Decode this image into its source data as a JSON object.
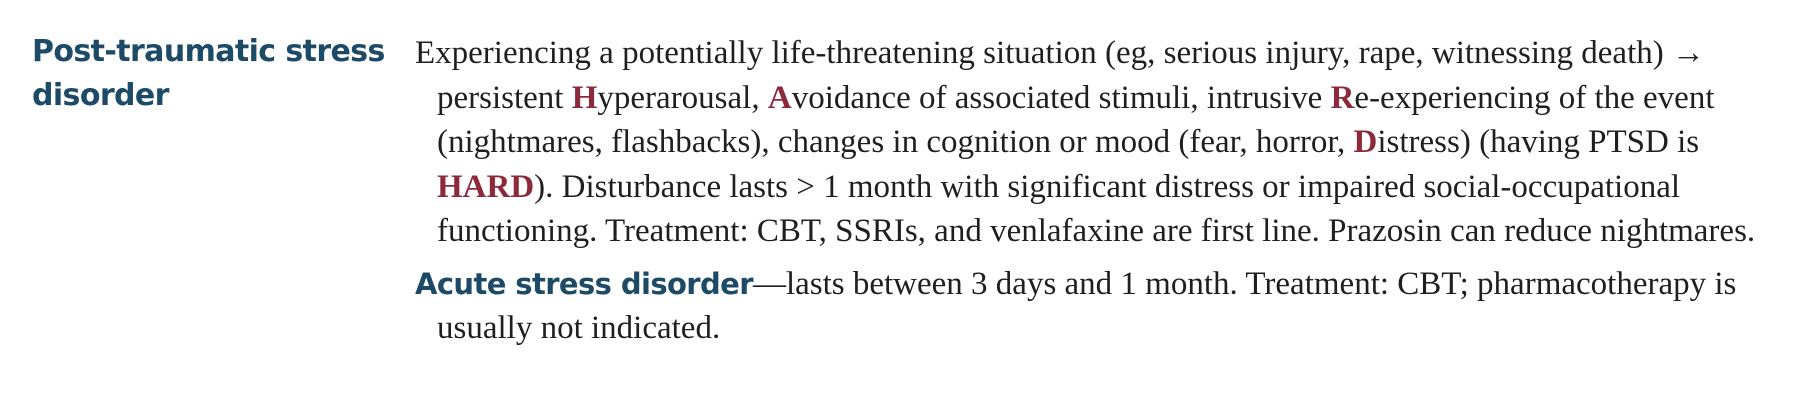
{
  "entry": {
    "term": "Post-traumatic stress disorder",
    "paragraph1": {
      "t1": "Experiencing a potentially life-threatening situation (eg, serious injury, rape, witnessing death) ",
      "arrow": "→",
      "t2": " persistent ",
      "m_h": "H",
      "t3": "yperarousal, ",
      "m_a": "A",
      "t4": "voidance of associated stimuli, intrusive ",
      "m_r": "R",
      "t5": "e-experiencing of the event (nightmares, flashbacks), changes in cognition or mood (fear, horror, ",
      "m_d": "D",
      "t6": "istress) (having PTSD is ",
      "m_hard": "HARD",
      "t7": "). Disturbance lasts > 1 month with significant distress or impaired social-occupational functioning. Treatment: CBT, SSRIs, and venlafaxine are first line. Prazosin can reduce nightmares."
    },
    "paragraph2": {
      "subterm": "Acute stress disorder",
      "text": "—lasts between 3 days and 1 month. Treatment: CBT; pharmacotherapy is usually not indicated."
    }
  },
  "colors": {
    "term": "#1d4a66",
    "mnemonic": "#8c2a3c",
    "body_text": "#1f1f1f"
  }
}
